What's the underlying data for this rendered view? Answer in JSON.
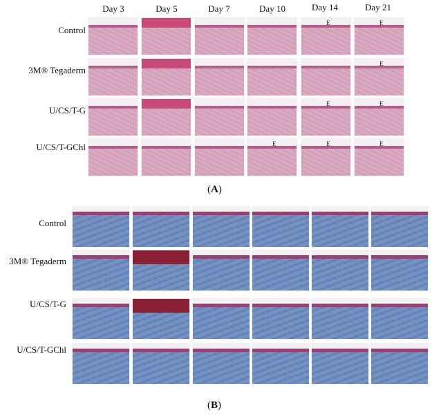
{
  "panelA": {
    "days": [
      "Day 3",
      "Day 5",
      "Day 7",
      "Day 10",
      "Day 14",
      "Day 21"
    ],
    "groups": [
      "Control",
      "3M® Tegaderm",
      "U/CS/T-G",
      "U/CS/T-GChl"
    ],
    "label_open": "(",
    "label_letter": "A",
    "label_close": ")",
    "e_markers": {
      "r0c4": "E",
      "r0c5": "E",
      "r1c5": "E",
      "r2c4": "E",
      "r2c5": "E",
      "r3c3": "E",
      "r3c4": "E",
      "r3c5": "E"
    }
  },
  "panelB": {
    "groups": [
      "Control",
      "3M® Tegaderm",
      "U/CS/T-G",
      "U/CS/T-GChl"
    ],
    "label_open": "(",
    "label_letter": "B",
    "label_close": ")"
  },
  "colors": {
    "he_tissue": "#d8a9bf",
    "he_epidermis": "#b75d8b",
    "mt_collagen": "#6f93c8",
    "mt_epidermis": "#9c3f6e",
    "mt_scab": "#8b1f36"
  }
}
